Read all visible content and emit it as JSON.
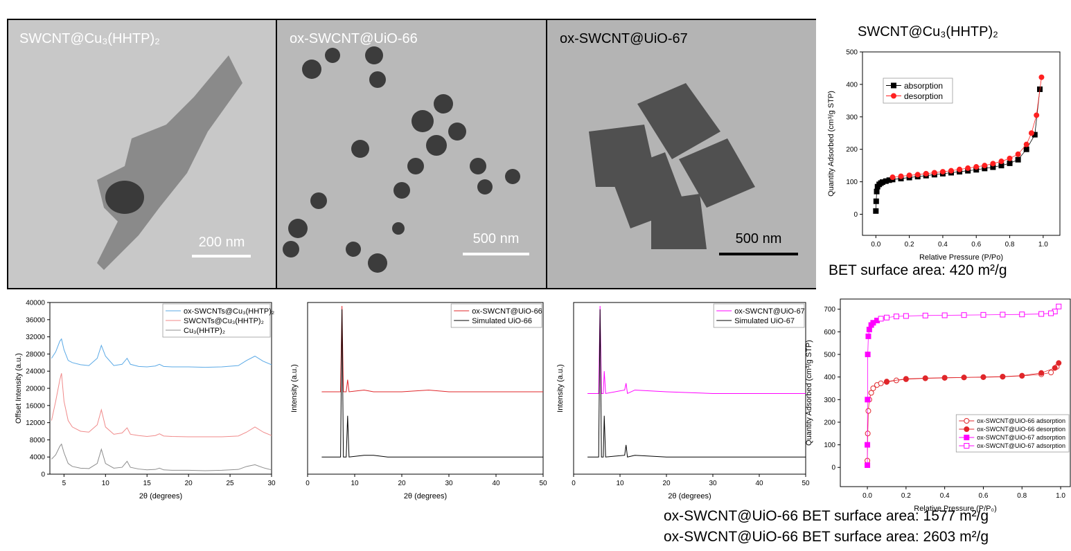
{
  "tem_images": [
    {
      "label": "SWCNT@Cu₃(HHTP)₂",
      "scale_bar": "200 nm"
    },
    {
      "label": "ox-SWCNT@UiO-66",
      "scale_bar": "500 nm"
    },
    {
      "label": "ox-SWCNT@UiO-67",
      "scale_bar": "500 nm"
    }
  ],
  "chart_data": [
    {
      "type": "scatter",
      "title": "SWCNT@Cu₃(HHTP)₂",
      "x_label": "Relative Pressure (P/Po)",
      "y_label": "Quantity Adsorbed (cm³/g STP)",
      "captions": [
        "BET surface area: 420 m²/g"
      ],
      "xlim": [
        -0.08,
        1.1
      ],
      "ylim": [
        -65,
        500
      ],
      "xticks": [
        {
          "value": 0,
          "label": "0.0"
        },
        0.2,
        0.4,
        0.6,
        0.8,
        {
          "value": 1,
          "label": "1.0"
        }
      ],
      "yticks": [
        0,
        100,
        200,
        300,
        400,
        500
      ],
      "legend": "upper left",
      "series": [
        {
          "name": "absorption",
          "color": "#000000",
          "marker": "square",
          "filled": true,
          "x": [
            0.0,
            0.002,
            0.005,
            0.01,
            0.02,
            0.03,
            0.04,
            0.06,
            0.08,
            0.1,
            0.15,
            0.2,
            0.25,
            0.3,
            0.35,
            0.4,
            0.45,
            0.5,
            0.55,
            0.6,
            0.65,
            0.7,
            0.75,
            0.8,
            0.85,
            0.9,
            0.95,
            0.98
          ],
          "values": [
            10,
            40,
            70,
            85,
            92,
            96,
            99,
            102,
            105,
            107,
            110,
            113,
            116,
            119,
            122,
            125,
            128,
            131,
            134,
            137,
            141,
            145,
            150,
            157,
            168,
            200,
            245,
            385
          ]
        },
        {
          "name": "desorption",
          "color": "#ff2020",
          "marker": "circle",
          "filled": true,
          "x": [
            0.99,
            0.96,
            0.93,
            0.9,
            0.85,
            0.8,
            0.75,
            0.7,
            0.65,
            0.6,
            0.55,
            0.5,
            0.45,
            0.4,
            0.35,
            0.3,
            0.25,
            0.2,
            0.15,
            0.1
          ],
          "values": [
            422,
            305,
            250,
            215,
            185,
            172,
            163,
            156,
            150,
            146,
            142,
            138,
            134,
            131,
            128,
            125,
            122,
            120,
            117,
            114
          ]
        }
      ]
    },
    {
      "type": "line",
      "x_label": "2θ (degrees)",
      "y_label": "Offset Intensity (a.u.)",
      "xlim": [
        3.3,
        30
      ],
      "ylim": [
        0,
        40000
      ],
      "xticks": [
        5,
        10,
        15,
        20,
        25,
        30
      ],
      "yticks": [
        0,
        4000,
        8000,
        12000,
        16000,
        20000,
        24000,
        28000,
        32000,
        36000,
        40000
      ],
      "legend": "upper right",
      "series": [
        {
          "name": "ox-SWCNTs@Cu₃(HHTP)₂",
          "color": "#5aa9e6",
          "x": [
            3.5,
            4,
            4.5,
            4.7,
            5,
            5.5,
            6,
            7,
            8,
            9,
            9.5,
            10,
            11,
            12,
            12.6,
            13,
            14,
            15,
            16,
            16.5,
            17,
            18,
            20,
            22,
            24,
            26,
            27,
            28,
            29,
            30
          ],
          "values": [
            27000,
            28500,
            31000,
            31500,
            29000,
            26500,
            26000,
            25500,
            25300,
            27000,
            30000,
            27500,
            25300,
            25600,
            27000,
            25600,
            25100,
            25000,
            25200,
            25600,
            25100,
            25000,
            25000,
            24900,
            25000,
            25300,
            26500,
            27500,
            26300,
            25500
          ]
        },
        {
          "name": "SWCNTs@Cu₃(HHTP)₂",
          "color": "#f08a8a",
          "x": [
            3.5,
            4,
            4.5,
            4.7,
            5,
            5.5,
            6,
            7,
            8,
            9,
            9.5,
            10,
            11,
            12,
            12.6,
            13,
            14,
            15,
            16,
            16.5,
            17,
            18,
            20,
            22,
            24,
            26,
            27,
            28,
            29,
            30
          ],
          "values": [
            12500,
            17000,
            22000,
            23500,
            17000,
            12500,
            11000,
            10000,
            9800,
            11500,
            15000,
            11000,
            9300,
            9600,
            10800,
            9300,
            9000,
            8800,
            9000,
            9400,
            8900,
            8800,
            8700,
            8700,
            8700,
            8900,
            9800,
            11000,
            9800,
            9000
          ]
        },
        {
          "name": "Cu₃(HHTP)₂",
          "color": "#8c8c8c",
          "x": [
            3.5,
            4,
            4.5,
            4.7,
            5,
            5.5,
            6,
            7,
            8,
            9,
            9.5,
            10,
            11,
            12,
            12.6,
            13,
            14,
            15,
            16,
            16.5,
            17,
            18,
            20,
            22,
            24,
            26,
            27,
            28,
            29,
            30
          ],
          "values": [
            3500,
            4500,
            6500,
            7000,
            5000,
            2500,
            1800,
            1400,
            1300,
            2500,
            5800,
            2500,
            1400,
            1600,
            3000,
            1600,
            1200,
            1000,
            1100,
            1400,
            1000,
            900,
            900,
            800,
            900,
            1100,
            1800,
            2200,
            1500,
            1000
          ]
        }
      ]
    },
    {
      "type": "line",
      "x_label": "2θ (degrees)",
      "y_label": "Intensity (a.u.)",
      "xlim": [
        0,
        50
      ],
      "ylim": [
        0,
        100
      ],
      "xticks": [
        0,
        10,
        20,
        30,
        40,
        50
      ],
      "legend": "upper right",
      "series": [
        {
          "name": "ox-SWCNT@UiO-66",
          "color": "#e0262a",
          "x": [
            3,
            7.0,
            7.3,
            7.6,
            8.2,
            8.5,
            8.8,
            12,
            14,
            17,
            20,
            25.7,
            30,
            40,
            50
          ],
          "values": [
            48,
            48,
            98,
            48,
            48,
            55,
            48,
            49,
            48,
            48,
            48,
            49,
            48,
            48,
            48
          ]
        },
        {
          "name": "Simulated UiO-66",
          "color": "#000000",
          "x": [
            3,
            7.0,
            7.3,
            7.6,
            8.2,
            8.5,
            8.8,
            12,
            14,
            17,
            20,
            25.7,
            30,
            40,
            50
          ],
          "values": [
            10,
            10,
            96,
            10,
            10,
            34,
            10,
            11,
            11,
            10,
            10,
            10,
            10,
            10,
            10
          ]
        }
      ]
    },
    {
      "type": "line",
      "x_label": "2θ (degrees)",
      "y_label": "Intensity (a.u.)",
      "xlim": [
        0,
        50
      ],
      "ylim": [
        0,
        100
      ],
      "xticks": [
        0,
        10,
        20,
        30,
        40,
        50
      ],
      "legend": "upper right",
      "series": [
        {
          "name": "ox-SWCNT@UiO-67",
          "color": "#ff00ff",
          "x": [
            3,
            5.4,
            5.7,
            6.0,
            6.4,
            6.6,
            6.9,
            11,
            11.3,
            11.6,
            13.2,
            20,
            30,
            40,
            50
          ],
          "values": [
            47,
            47,
            98,
            47,
            47,
            60,
            47,
            49,
            53,
            47,
            49,
            48,
            47,
            47,
            47
          ]
        },
        {
          "name": "Simulated UiO-67",
          "color": "#000000",
          "x": [
            3,
            5.4,
            5.7,
            6.0,
            6.4,
            6.6,
            6.9,
            11,
            11.3,
            11.6,
            13.2,
            20,
            30,
            40,
            50
          ],
          "values": [
            10,
            10,
            96,
            10,
            10,
            34,
            10,
            11,
            17,
            10,
            11,
            10,
            10,
            10,
            10
          ]
        }
      ]
    },
    {
      "type": "scatter",
      "x_label": "Relative Pressure (P/P₀)",
      "y_label": "Quantity Adsorbed (cm³/g STP)",
      "captions": [
        "ox-SWCNT@UiO-66 BET surface area: 1577 m²/g",
        "ox-SWCNT@UiO-66 BET surface area: 2603 m²/g"
      ],
      "xlim": [
        -0.14,
        1.05
      ],
      "ylim": [
        -85,
        745
      ],
      "xticks": [
        {
          "value": 0,
          "label": "0.0"
        },
        0.2,
        0.4,
        0.6,
        0.8,
        {
          "value": 1,
          "label": "1.0"
        }
      ],
      "yticks": [
        0,
        100,
        200,
        300,
        400,
        500,
        600,
        700
      ],
      "legend": "lower right",
      "series": [
        {
          "name": "ox-SWCNT@UiO-66 adsorption",
          "color": "#e0262a",
          "marker": "circle",
          "filled": false,
          "x": [
            0,
            0.002,
            0.005,
            0.01,
            0.02,
            0.03,
            0.05,
            0.07,
            0.1,
            0.15,
            0.2,
            0.3,
            0.4,
            0.5,
            0.6,
            0.7,
            0.8,
            0.9,
            0.95,
            0.98
          ],
          "values": [
            30,
            150,
            250,
            300,
            330,
            350,
            365,
            372,
            378,
            385,
            390,
            394,
            396,
            398,
            399,
            401,
            405,
            412,
            420,
            445
          ]
        },
        {
          "name": "ox-SWCNT@UiO-66 desorption",
          "color": "#e0262a",
          "marker": "circle",
          "filled": true,
          "x": [
            0.99,
            0.97,
            0.9,
            0.8,
            0.7,
            0.6,
            0.5,
            0.4,
            0.3,
            0.2,
            0.1
          ],
          "values": [
            462,
            440,
            418,
            406,
            402,
            400,
            398,
            397,
            395,
            392,
            380
          ]
        },
        {
          "name": "ox-SWCNT@UiO-67 adsorption",
          "color": "#ff00ff",
          "marker": "square",
          "filled": true,
          "x": [
            0,
            0,
            0.001,
            0.002,
            0.005,
            0.01,
            0.02,
            0.03,
            0.05
          ],
          "values": [
            10,
            100,
            300,
            500,
            580,
            610,
            630,
            640,
            650
          ]
        },
        {
          "name": "ox-SWCNT@UiO-67 adsorption",
          "color": "#ff00ff",
          "marker": "square",
          "filled": false,
          "x": [
            0.99,
            0.97,
            0.95,
            0.9,
            0.8,
            0.7,
            0.6,
            0.5,
            0.4,
            0.3,
            0.2,
            0.15,
            0.1,
            0.07
          ],
          "values": [
            712,
            690,
            682,
            679,
            677,
            676,
            675,
            674,
            673,
            672,
            670,
            668,
            663,
            658
          ]
        }
      ]
    }
  ]
}
